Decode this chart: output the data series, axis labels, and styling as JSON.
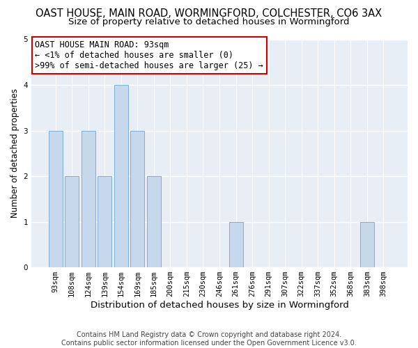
{
  "title_line1": "OAST HOUSE, MAIN ROAD, WORMINGFORD, COLCHESTER, CO6 3AX",
  "title_line2": "Size of property relative to detached houses in Wormingford",
  "xlabel": "Distribution of detached houses by size in Wormingford",
  "ylabel": "Number of detached properties",
  "footnote_line1": "Contains HM Land Registry data © Crown copyright and database right 2024.",
  "footnote_line2": "Contains public sector information licensed under the Open Government Licence v3.0.",
  "annotation_line1": "OAST HOUSE MAIN ROAD: 93sqm",
  "annotation_line2": "← <1% of detached houses are smaller (0)",
  "annotation_line3": ">99% of semi-detached houses are larger (25) →",
  "bin_labels": [
    "93sqm",
    "108sqm",
    "124sqm",
    "139sqm",
    "154sqm",
    "169sqm",
    "185sqm",
    "200sqm",
    "215sqm",
    "230sqm",
    "246sqm",
    "261sqm",
    "276sqm",
    "291sqm",
    "307sqm",
    "322sqm",
    "337sqm",
    "352sqm",
    "368sqm",
    "383sqm",
    "398sqm"
  ],
  "bar_heights": [
    3,
    2,
    3,
    2,
    4,
    3,
    2,
    0,
    0,
    0,
    0,
    1,
    0,
    0,
    0,
    0,
    0,
    0,
    0,
    1,
    0
  ],
  "bar_color": "#c8d8ec",
  "bar_edge_color": "#7bafd4",
  "annotation_box_edge_color": "#cc0000",
  "annotation_box_face_color": "#ffffff",
  "ylim": [
    0,
    5
  ],
  "yticks": [
    0,
    1,
    2,
    3,
    4,
    5
  ],
  "bg_color": "#ffffff",
  "plot_bg_color": "#e8eef5",
  "grid_color": "#ffffff",
  "title1_fontsize": 10.5,
  "title2_fontsize": 9.5,
  "xlabel_fontsize": 9.5,
  "ylabel_fontsize": 8.5,
  "tick_fontsize": 7.5,
  "annot_fontsize": 8.5,
  "footnote_fontsize": 7.0
}
